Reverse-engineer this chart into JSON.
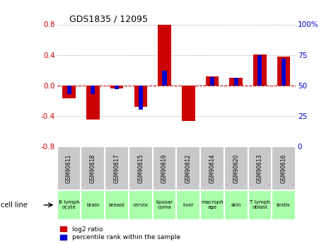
{
  "title": "GDS1835 / 12095",
  "gsm_labels": [
    "GSM90611",
    "GSM90618",
    "GSM90617",
    "GSM90615",
    "GSM90619",
    "GSM90612",
    "GSM90614",
    "GSM90620",
    "GSM90613",
    "GSM90616"
  ],
  "cell_labels": [
    "B lymph\nocyte",
    "brain",
    "breast",
    "cervix",
    "liposar\ncoma",
    "liver",
    "macroph\nage",
    "skin",
    "T lymph\noblast",
    "testis"
  ],
  "log2_ratio": [
    -0.17,
    -0.45,
    -0.04,
    -0.28,
    0.8,
    -0.47,
    0.12,
    0.1,
    0.41,
    0.38
  ],
  "percentile_rank": [
    43,
    43,
    47,
    30,
    62,
    50,
    57,
    56,
    75,
    72
  ],
  "ylim": [
    -0.8,
    0.8
  ],
  "yticks_left": [
    -0.8,
    -0.4,
    0.0,
    0.4,
    0.8
  ],
  "yticks_right": [
    0,
    25,
    50,
    75,
    100
  ],
  "red_bar_width": 0.55,
  "blue_bar_width": 0.18,
  "red_color": "#cc0000",
  "blue_color": "#0000cc",
  "gsm_bg": "#c8c8c8",
  "cell_bg_light": "#aaffaa",
  "cell_bg_white": "#ccffcc",
  "legend_red": "log2 ratio",
  "legend_blue": "percentile rank within the sample"
}
